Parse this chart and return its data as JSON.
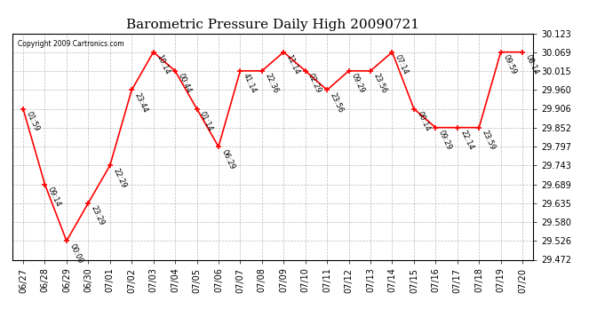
{
  "title": "Barometric Pressure Daily High 20090721",
  "copyright": "Copyright 2009 Cartronics.com",
  "dates": [
    "06/27",
    "06/28",
    "06/29",
    "06/30",
    "07/01",
    "07/02",
    "07/03",
    "07/04",
    "07/05",
    "07/06",
    "07/07",
    "07/08",
    "07/09",
    "07/10",
    "07/11",
    "07/12",
    "07/13",
    "07/14",
    "07/15",
    "07/16",
    "07/17",
    "07/18",
    "07/19",
    "07/20"
  ],
  "values": [
    29.906,
    29.689,
    29.526,
    29.635,
    29.743,
    29.96,
    30.069,
    30.015,
    29.906,
    29.797,
    30.015,
    30.015,
    30.069,
    30.015,
    29.96,
    30.015,
    30.015,
    30.069,
    29.906,
    29.852,
    29.852,
    29.852,
    30.069,
    30.069
  ],
  "times": [
    "01:59",
    "09:14",
    "00:00",
    "23:29",
    "22:29",
    "23:44",
    "10:14",
    "00:44",
    "01:14",
    "06:29",
    "41:14",
    "22:36",
    "11:14",
    "02:29",
    "23:56",
    "09:29",
    "23:56",
    "07:14",
    "00:14",
    "09:29",
    "22:14",
    "23:59",
    "09:59",
    "08:14"
  ],
  "ylim": [
    29.472,
    30.123
  ],
  "yticks": [
    29.472,
    29.526,
    29.58,
    29.635,
    29.689,
    29.743,
    29.797,
    29.852,
    29.906,
    29.96,
    30.015,
    30.069,
    30.123
  ],
  "line_color": "red",
  "marker_color": "red",
  "bg_color": "white",
  "grid_color": "#bbbbbb",
  "title_fontsize": 11,
  "annot_fontsize": 6,
  "tick_fontsize": 7
}
